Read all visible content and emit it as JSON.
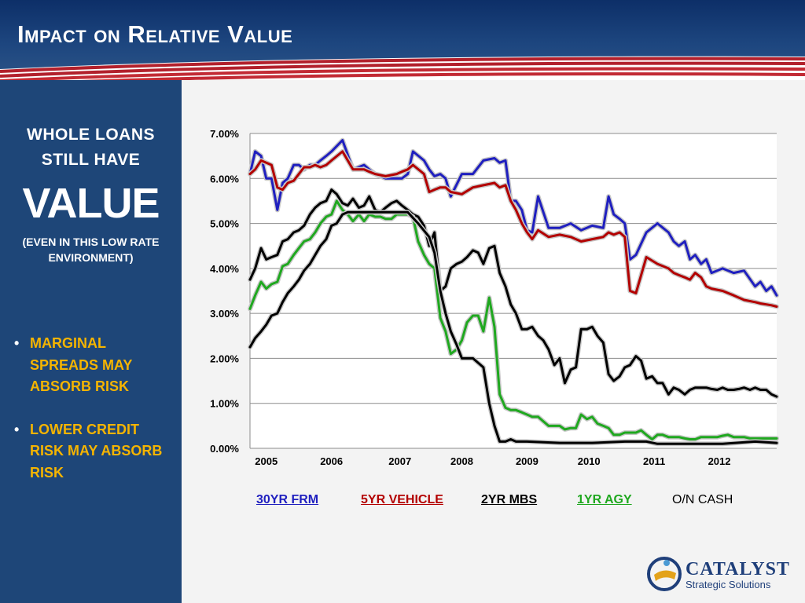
{
  "slide": {
    "title": "Impact on Relative Value"
  },
  "sidebar": {
    "line1": "WHOLE  LOANS",
    "line2": "STILL  HAVE",
    "line3": "VALUE",
    "line4": "(EVEN  IN  THIS  LOW  RATE ENVIRONMENT)",
    "bullets": [
      "MARGINAL SPREADS MAY ABSORB  RISK",
      "LOWER CREDIT RISK MAY ABSORB RISK"
    ]
  },
  "legend": [
    {
      "label": "30YR FRM",
      "color": "#1f1fbf"
    },
    {
      "label": "5YR VEHICLE",
      "color": "#b30000"
    },
    {
      "label": "2YR MBS",
      "color": "#000000"
    },
    {
      "label": "1YR AGY",
      "color": "#1fa81f"
    },
    {
      "label": "O/N CASH",
      "color": "#000000"
    }
  ],
  "logo": {
    "name": "CATALYST",
    "subtitle": "Strategic Solutions"
  },
  "chart_data": {
    "type": "line",
    "title": "",
    "xlabel": "",
    "ylabel": "",
    "xlim": [
      2004.75,
      2012.83
    ],
    "ylim": [
      0,
      7
    ],
    "yticks": [
      "0.00%",
      "1.00%",
      "2.00%",
      "3.00%",
      "4.00%",
      "5.00%",
      "6.00%",
      "7.00%"
    ],
    "xticks": [
      {
        "x": 2005.0,
        "label": "2005"
      },
      {
        "x": 2006.0,
        "label": "2006"
      },
      {
        "x": 2007.05,
        "label": "2007"
      },
      {
        "x": 2008.0,
        "label": "2008"
      },
      {
        "x": 2009.0,
        "label": "2009"
      },
      {
        "x": 2009.95,
        "label": "2010"
      },
      {
        "x": 2010.95,
        "label": "2011"
      },
      {
        "x": 2011.95,
        "label": "2012"
      }
    ],
    "grid": true,
    "legend_position": "bottom",
    "series": [
      {
        "name": "30YR FRM",
        "color": "#1f1fbf",
        "x": [
          2004.75,
          2004.83,
          2004.92,
          2005.0,
          2005.08,
          2005.17,
          2005.25,
          2005.33,
          2005.42,
          2005.5,
          2005.58,
          2005.67,
          2005.75,
          2005.83,
          2005.92,
          2006.0,
          2006.17,
          2006.33,
          2006.5,
          2006.58,
          2006.67,
          2006.83,
          2007.0,
          2007.08,
          2007.17,
          2007.25,
          2007.42,
          2007.5,
          2007.58,
          2007.67,
          2007.75,
          2007.83,
          2008.0,
          2008.17,
          2008.33,
          2008.5,
          2008.58,
          2008.67,
          2008.75,
          2008.83,
          2008.92,
          2009.0,
          2009.08,
          2009.17,
          2009.33,
          2009.5,
          2009.67,
          2009.83,
          2010.0,
          2010.17,
          2010.25,
          2010.33,
          2010.42,
          2010.5,
          2010.58,
          2010.67,
          2010.83,
          2011.0,
          2011.17,
          2011.25,
          2011.33,
          2011.42,
          2011.5,
          2011.58,
          2011.67,
          2011.75,
          2011.83,
          2012.0,
          2012.17,
          2012.33,
          2012.5,
          2012.58,
          2012.67,
          2012.75,
          2012.83
        ],
        "y": [
          6.1,
          6.6,
          6.5,
          6.0,
          6.0,
          5.3,
          5.9,
          6.0,
          6.3,
          6.3,
          6.2,
          6.3,
          6.3,
          6.4,
          6.5,
          6.6,
          6.85,
          6.2,
          6.3,
          6.2,
          6.1,
          6.0,
          6.0,
          6.0,
          6.1,
          6.6,
          6.4,
          6.2,
          6.05,
          6.1,
          6.0,
          5.6,
          6.1,
          6.1,
          6.4,
          6.45,
          6.35,
          6.4,
          5.5,
          5.5,
          5.3,
          4.85,
          4.8,
          5.6,
          4.9,
          4.9,
          5.0,
          4.85,
          4.95,
          4.9,
          5.6,
          5.2,
          5.1,
          5.0,
          4.2,
          4.3,
          4.8,
          5.0,
          4.8,
          4.6,
          4.5,
          4.6,
          4.2,
          4.3,
          4.1,
          4.2,
          3.9,
          4.0,
          3.9,
          3.95,
          3.6,
          3.7,
          3.5,
          3.6,
          3.4
        ]
      },
      {
        "name": "5YR VEHICLE",
        "color": "#b30000",
        "x": [
          2004.75,
          2004.83,
          2004.92,
          2005.0,
          2005.08,
          2005.17,
          2005.25,
          2005.33,
          2005.42,
          2005.5,
          2005.58,
          2005.67,
          2005.75,
          2005.83,
          2005.92,
          2006.0,
          2006.17,
          2006.33,
          2006.5,
          2006.58,
          2006.67,
          2006.83,
          2007.0,
          2007.08,
          2007.17,
          2007.25,
          2007.42,
          2007.5,
          2007.58,
          2007.67,
          2007.75,
          2007.83,
          2008.0,
          2008.17,
          2008.33,
          2008.5,
          2008.58,
          2008.67,
          2008.75,
          2008.83,
          2008.92,
          2009.0,
          2009.08,
          2009.17,
          2009.33,
          2009.5,
          2009.67,
          2009.83,
          2010.0,
          2010.17,
          2010.25,
          2010.33,
          2010.42,
          2010.5,
          2010.58,
          2010.67,
          2010.83,
          2011.0,
          2011.17,
          2011.25,
          2011.33,
          2011.42,
          2011.5,
          2011.58,
          2011.67,
          2011.75,
          2011.83,
          2012.0,
          2012.17,
          2012.33,
          2012.5,
          2012.58,
          2012.67,
          2012.75,
          2012.83
        ],
        "y": [
          6.1,
          6.2,
          6.4,
          6.35,
          6.3,
          5.8,
          5.75,
          5.9,
          5.95,
          6.1,
          6.25,
          6.25,
          6.3,
          6.25,
          6.3,
          6.4,
          6.6,
          6.2,
          6.2,
          6.15,
          6.1,
          6.05,
          6.1,
          6.15,
          6.2,
          6.3,
          6.1,
          5.7,
          5.75,
          5.8,
          5.8,
          5.7,
          5.65,
          5.8,
          5.85,
          5.9,
          5.8,
          5.85,
          5.5,
          5.3,
          5.0,
          4.8,
          4.65,
          4.85,
          4.7,
          4.75,
          4.7,
          4.6,
          4.65,
          4.7,
          4.8,
          4.75,
          4.8,
          4.7,
          3.5,
          3.45,
          4.25,
          4.1,
          4.0,
          3.9,
          3.85,
          3.8,
          3.75,
          3.9,
          3.8,
          3.6,
          3.55,
          3.5,
          3.4,
          3.3,
          3.25,
          3.22,
          3.2,
          3.18,
          3.15
        ]
      },
      {
        "name": "2YR MBS",
        "color": "#000000",
        "x": [
          2004.75,
          2004.83,
          2004.92,
          2005.0,
          2005.08,
          2005.17,
          2005.25,
          2005.33,
          2005.42,
          2005.5,
          2005.58,
          2005.67,
          2005.75,
          2005.83,
          2005.92,
          2006.0,
          2006.08,
          2006.17,
          2006.25,
          2006.33,
          2006.42,
          2006.5,
          2006.58,
          2006.67,
          2006.75,
          2006.83,
          2006.92,
          2007.0,
          2007.08,
          2007.17,
          2007.25,
          2007.33,
          2007.42,
          2007.5,
          2007.58,
          2007.67,
          2007.75,
          2007.83,
          2007.92,
          2008.0,
          2008.08,
          2008.17,
          2008.25,
          2008.33,
          2008.42,
          2008.5,
          2008.58,
          2008.67,
          2008.75,
          2008.83,
          2008.92,
          2009.0,
          2009.08,
          2009.17,
          2009.25,
          2009.33,
          2009.42,
          2009.5,
          2009.58,
          2009.67,
          2009.75,
          2009.83,
          2009.92,
          2010.0,
          2010.08,
          2010.17,
          2010.25,
          2010.33,
          2010.42,
          2010.5,
          2010.58,
          2010.67,
          2010.75,
          2010.83,
          2010.92,
          2011.0,
          2011.08,
          2011.17,
          2011.25,
          2011.33,
          2011.42,
          2011.5,
          2011.58,
          2011.67,
          2011.75,
          2011.83,
          2011.92,
          2012.0,
          2012.08,
          2012.17,
          2012.25,
          2012.33,
          2012.42,
          2012.5,
          2012.58,
          2012.67,
          2012.75,
          2012.83
        ],
        "y": [
          3.75,
          4.0,
          4.45,
          4.2,
          4.25,
          4.3,
          4.6,
          4.65,
          4.8,
          4.85,
          4.95,
          5.2,
          5.35,
          5.45,
          5.5,
          5.75,
          5.65,
          5.45,
          5.4,
          5.55,
          5.35,
          5.4,
          5.6,
          5.3,
          5.25,
          5.35,
          5.45,
          5.5,
          5.4,
          5.3,
          5.2,
          5.15,
          4.95,
          4.5,
          4.8,
          3.5,
          3.6,
          4.0,
          4.1,
          4.15,
          4.25,
          4.4,
          4.35,
          4.1,
          4.45,
          4.5,
          3.9,
          3.6,
          3.2,
          3.0,
          2.65,
          2.65,
          2.7,
          2.5,
          2.4,
          2.2,
          1.85,
          2.0,
          1.45,
          1.75,
          1.8,
          2.65,
          2.65,
          2.7,
          2.5,
          2.35,
          1.65,
          1.5,
          1.6,
          1.8,
          1.85,
          2.05,
          1.95,
          1.55,
          1.6,
          1.45,
          1.45,
          1.2,
          1.35,
          1.3,
          1.2,
          1.3,
          1.35,
          1.35,
          1.35,
          1.32,
          1.3,
          1.35,
          1.3,
          1.3,
          1.32,
          1.35,
          1.3,
          1.35,
          1.3,
          1.3,
          1.2,
          1.15
        ]
      },
      {
        "name": "1YR AGY",
        "color": "#1fa81f",
        "x": [
          2004.75,
          2004.83,
          2004.92,
          2005.0,
          2005.08,
          2005.17,
          2005.25,
          2005.33,
          2005.42,
          2005.5,
          2005.58,
          2005.67,
          2005.75,
          2005.83,
          2005.92,
          2006.0,
          2006.08,
          2006.17,
          2006.25,
          2006.33,
          2006.42,
          2006.5,
          2006.58,
          2006.67,
          2006.75,
          2006.83,
          2006.92,
          2007.0,
          2007.08,
          2007.17,
          2007.25,
          2007.33,
          2007.42,
          2007.5,
          2007.58,
          2007.67,
          2007.75,
          2007.83,
          2007.92,
          2008.0,
          2008.08,
          2008.17,
          2008.25,
          2008.33,
          2008.42,
          2008.5,
          2008.58,
          2008.67,
          2008.75,
          2008.83,
          2008.92,
          2009.0,
          2009.08,
          2009.17,
          2009.25,
          2009.33,
          2009.42,
          2009.5,
          2009.58,
          2009.67,
          2009.75,
          2009.83,
          2009.92,
          2010.0,
          2010.08,
          2010.17,
          2010.25,
          2010.33,
          2010.42,
          2010.5,
          2010.58,
          2010.67,
          2010.75,
          2010.83,
          2010.92,
          2011.0,
          2011.08,
          2011.17,
          2011.25,
          2011.33,
          2011.42,
          2011.5,
          2011.58,
          2011.67,
          2011.75,
          2011.83,
          2011.92,
          2012.0,
          2012.08,
          2012.17,
          2012.25,
          2012.33,
          2012.42,
          2012.5,
          2012.58,
          2012.67,
          2012.75,
          2012.83
        ],
        "y": [
          3.1,
          3.4,
          3.7,
          3.55,
          3.65,
          3.7,
          4.05,
          4.1,
          4.3,
          4.45,
          4.6,
          4.65,
          4.8,
          5.0,
          5.15,
          5.2,
          5.5,
          5.3,
          5.2,
          5.05,
          5.2,
          5.05,
          5.2,
          5.15,
          5.15,
          5.1,
          5.1,
          5.2,
          5.2,
          5.2,
          5.15,
          4.6,
          4.3,
          4.1,
          4.0,
          2.9,
          2.6,
          2.1,
          2.2,
          2.4,
          2.8,
          2.95,
          2.95,
          2.6,
          3.35,
          2.7,
          1.2,
          0.9,
          0.85,
          0.85,
          0.8,
          0.75,
          0.7,
          0.7,
          0.6,
          0.5,
          0.5,
          0.5,
          0.42,
          0.45,
          0.45,
          0.75,
          0.65,
          0.7,
          0.55,
          0.5,
          0.45,
          0.3,
          0.3,
          0.35,
          0.35,
          0.35,
          0.4,
          0.3,
          0.2,
          0.3,
          0.3,
          0.25,
          0.25,
          0.25,
          0.22,
          0.2,
          0.2,
          0.25,
          0.25,
          0.25,
          0.25,
          0.28,
          0.3,
          0.25,
          0.25,
          0.25,
          0.22,
          0.22,
          0.22,
          0.22,
          0.22,
          0.22
        ]
      },
      {
        "name": "O/N CASH",
        "color": "#000000",
        "x": [
          2004.75,
          2004.83,
          2004.92,
          2005.0,
          2005.08,
          2005.17,
          2005.25,
          2005.33,
          2005.42,
          2005.5,
          2005.58,
          2005.67,
          2005.75,
          2005.83,
          2005.92,
          2006.0,
          2006.08,
          2006.17,
          2006.25,
          2006.33,
          2006.5,
          2006.67,
          2006.83,
          2007.0,
          2007.17,
          2007.33,
          2007.5,
          2007.58,
          2007.67,
          2007.75,
          2007.83,
          2007.92,
          2008.0,
          2008.17,
          2008.33,
          2008.42,
          2008.5,
          2008.58,
          2008.67,
          2008.75,
          2008.83,
          2009.0,
          2009.5,
          2010.0,
          2010.5,
          2010.83,
          2011.0,
          2011.5,
          2012.0,
          2012.5,
          2012.83
        ],
        "y": [
          2.25,
          2.45,
          2.6,
          2.75,
          2.95,
          3.0,
          3.25,
          3.45,
          3.6,
          3.75,
          3.95,
          4.1,
          4.3,
          4.5,
          4.65,
          4.95,
          5.0,
          5.2,
          5.25,
          5.25,
          5.25,
          5.25,
          5.25,
          5.25,
          5.25,
          5.0,
          4.7,
          4.35,
          3.5,
          3.0,
          2.6,
          2.3,
          2.0,
          2.0,
          1.8,
          1.0,
          0.5,
          0.15,
          0.15,
          0.2,
          0.15,
          0.15,
          0.12,
          0.12,
          0.15,
          0.15,
          0.1,
          0.1,
          0.1,
          0.15,
          0.12
        ]
      }
    ]
  }
}
